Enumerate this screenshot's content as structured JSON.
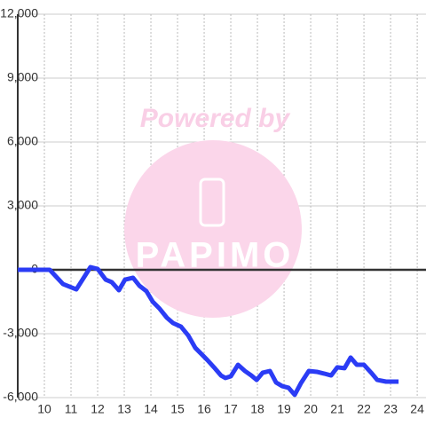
{
  "chart_data": {
    "type": "line",
    "watermark": {
      "text": "Powered by",
      "logo": "PAPIMO"
    },
    "x": [
      9.0,
      10.2,
      10.7,
      11.2,
      11.73,
      12.0,
      12.3,
      12.53,
      12.8,
      13.03,
      13.33,
      13.57,
      13.83,
      14.07,
      14.33,
      14.6,
      14.83,
      15.13,
      15.4,
      15.67,
      15.87,
      16.13,
      16.37,
      16.63,
      16.8,
      17.0,
      17.27,
      17.53,
      17.77,
      17.97,
      18.2,
      18.47,
      18.7,
      18.93,
      19.17,
      19.4,
      19.63,
      19.93,
      20.23,
      20.5,
      20.77,
      21.0,
      21.27,
      21.5,
      21.73,
      22.0,
      22.27,
      22.5,
      22.83,
      23.3
    ],
    "series": [
      {
        "color": "#2b3cf5",
        "values": [
          0,
          0,
          -670,
          -920,
          125,
          40,
          -460,
          -580,
          -960,
          -460,
          -375,
          -750,
          -1000,
          -1500,
          -1830,
          -2250,
          -2500,
          -2670,
          -3080,
          -3670,
          -3920,
          -4250,
          -4580,
          -4960,
          -5080,
          -5000,
          -4460,
          -4750,
          -4960,
          -5170,
          -4830,
          -4750,
          -5290,
          -5460,
          -5540,
          -5870,
          -5330,
          -4750,
          -4790,
          -4870,
          -4960,
          -4580,
          -4620,
          -4120,
          -4460,
          -4460,
          -4830,
          -5170,
          -5250,
          -5250
        ]
      }
    ],
    "xlim": [
      9,
      24.33
    ],
    "xticks": [
      10,
      11,
      12,
      13,
      14,
      15,
      16,
      17,
      18,
      19,
      20,
      21,
      22,
      23,
      24
    ],
    "ylim": [
      -6000,
      12000
    ],
    "yticks": [
      {
        "value": -6000,
        "label": "-6,000"
      },
      {
        "value": -3000,
        "label": "-3,000"
      },
      0,
      {
        "value": 3000,
        "label": "3,000"
      },
      {
        "value": 6000,
        "label": "6,000"
      },
      {
        "value": 9000,
        "label": "9,000"
      },
      {
        "value": 12000,
        "label": "12,000"
      }
    ],
    "grid": true
  }
}
